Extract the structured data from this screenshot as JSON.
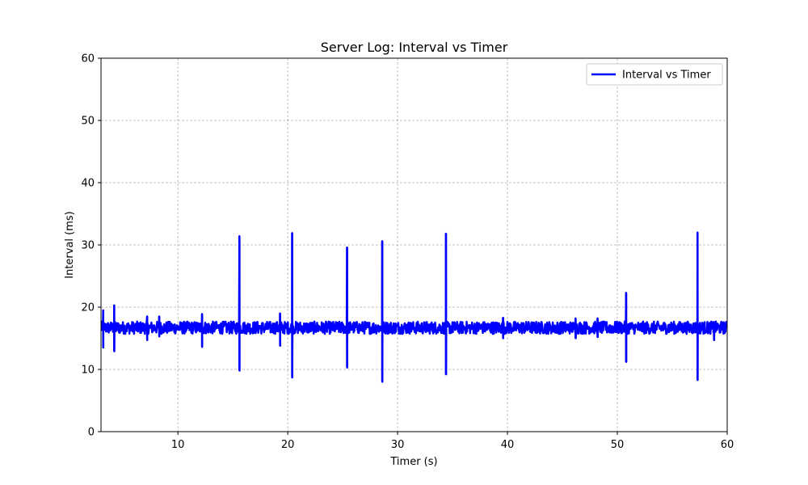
{
  "chart_data": {
    "type": "line",
    "title": "Server Log: Interval vs Timer",
    "xlabel": "Timer (s)",
    "ylabel": "Interval (ms)",
    "xlim": [
      3,
      60
    ],
    "ylim": [
      0,
      60
    ],
    "xticks": [
      10,
      20,
      30,
      40,
      50,
      60
    ],
    "yticks": [
      0,
      10,
      20,
      30,
      40,
      50,
      60
    ],
    "grid": true,
    "legend_position": "top-right",
    "series": [
      {
        "name": "Interval vs Timer",
        "color": "#0000ff",
        "baseline": 16.7,
        "noise_amplitude": 1.0,
        "spikes": [
          {
            "x": 3.2,
            "high": 19.5,
            "low": 13.5
          },
          {
            "x": 4.2,
            "high": 20.3,
            "low": 12.9
          },
          {
            "x": 7.2,
            "high": 18.5,
            "low": 14.7
          },
          {
            "x": 8.3,
            "high": 18.5,
            "low": 15.3
          },
          {
            "x": 12.2,
            "high": 18.9,
            "low": 13.6
          },
          {
            "x": 15.6,
            "high": 31.4,
            "low": 9.8
          },
          {
            "x": 19.3,
            "high": 19.0,
            "low": 13.8
          },
          {
            "x": 20.4,
            "high": 31.9,
            "low": 8.7
          },
          {
            "x": 25.4,
            "high": 29.6,
            "low": 10.3
          },
          {
            "x": 28.6,
            "high": 30.6,
            "low": 8.0
          },
          {
            "x": 34.4,
            "high": 31.8,
            "low": 9.2
          },
          {
            "x": 39.6,
            "high": 18.3,
            "low": 15.0
          },
          {
            "x": 46.2,
            "high": 18.2,
            "low": 15.0
          },
          {
            "x": 48.2,
            "high": 18.2,
            "low": 15.2
          },
          {
            "x": 50.8,
            "high": 22.3,
            "low": 11.2
          },
          {
            "x": 57.3,
            "high": 32.0,
            "low": 8.3
          },
          {
            "x": 58.8,
            "high": 17.6,
            "low": 14.7
          }
        ]
      }
    ]
  }
}
